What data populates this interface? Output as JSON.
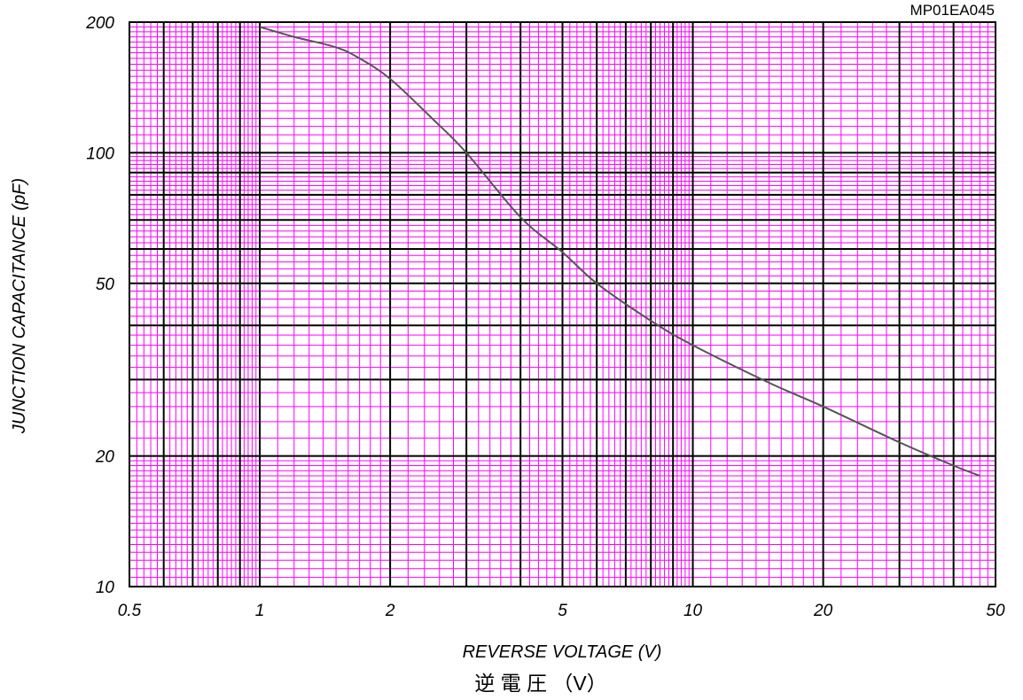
{
  "chart_data": {
    "type": "line",
    "code": "MP01EA045",
    "xlabel": "REVERSE VOLTAGE (V)",
    "xlabel_jp": "逆 電 圧 （V）",
    "ylabel": "JUNCTION CAPACITANCE (pF)",
    "x_scale": "log",
    "y_scale": "log",
    "xlim": [
      0.5,
      50
    ],
    "ylim": [
      10,
      200
    ],
    "x_tick_labels": [
      "0.5",
      "1",
      "2",
      "5",
      "10",
      "20",
      "50"
    ],
    "x_tick_values": [
      0.5,
      1,
      2,
      5,
      10,
      20,
      50
    ],
    "y_tick_labels": [
      "10",
      "20",
      "50",
      "100",
      "200"
    ],
    "y_tick_values": [
      10,
      20,
      50,
      100,
      200
    ],
    "grid": true,
    "colors": {
      "minor_grid": "#ff00ff",
      "major_grid": "#000000",
      "curve": "#555555"
    },
    "series": [
      {
        "x": [
          1,
          1.2,
          1.5,
          1.7,
          2,
          2.5,
          3,
          4,
          5,
          6,
          8,
          10,
          15,
          20,
          30,
          40,
          46
        ],
        "y": [
          195,
          185,
          175,
          165,
          148,
          120,
          100,
          71,
          59,
          50,
          41,
          36,
          29.5,
          26,
          21.5,
          19,
          18
        ]
      }
    ]
  }
}
